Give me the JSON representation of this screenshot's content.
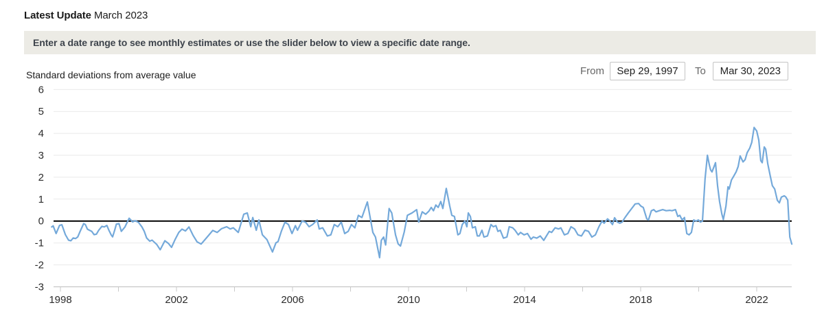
{
  "header": {
    "latest_update_label": "Latest Update",
    "latest_update_value": "March 2023"
  },
  "banner": {
    "text": "Enter a date range to see monthly estimates or use the slider below to view a specific date range."
  },
  "range": {
    "from_label": "From",
    "from_value": "Sep 29, 1997",
    "to_label": "To",
    "to_value": "Mar 30, 2023"
  },
  "colors": {
    "accent_line": "#74a9da",
    "banner_bg": "#ecebe5",
    "zero_line": "#000000",
    "gridline": "#e9e9e9",
    "axis_line": "#b9b9b9",
    "tick": "#c9c9c9"
  },
  "chart_data": {
    "type": "line",
    "title": "Standard deviations from average value",
    "xlabel": "",
    "ylabel": "Standard deviations from average value",
    "ylim": [
      -3,
      6
    ],
    "xlim": [
      1997.65,
      2023.3
    ],
    "grid": true,
    "legend_position": "none",
    "zero_line": true,
    "line_color": "#74a9da",
    "y_ticks": [
      6,
      5,
      4,
      3,
      2,
      1,
      0,
      -1,
      -2,
      -3
    ],
    "x_ticks": [
      1998,
      2000,
      2002,
      2004,
      2006,
      2008,
      2010,
      2012,
      2014,
      2016,
      2018,
      2020,
      2022
    ],
    "x_tick_labels": [
      1998,
      2002,
      2006,
      2010,
      2014,
      2018,
      2022
    ],
    "series": [
      {
        "name": "Standard deviations from average value",
        "points": [
          [
            1997.7,
            -0.27
          ],
          [
            1997.75,
            -0.22
          ],
          [
            1997.85,
            -0.57
          ],
          [
            1997.97,
            -0.2
          ],
          [
            1998.05,
            -0.17
          ],
          [
            1998.17,
            -0.62
          ],
          [
            1998.28,
            -0.87
          ],
          [
            1998.36,
            -0.9
          ],
          [
            1998.44,
            -0.77
          ],
          [
            1998.52,
            -0.8
          ],
          [
            1998.6,
            -0.72
          ],
          [
            1998.68,
            -0.47
          ],
          [
            1998.8,
            -0.12
          ],
          [
            1998.86,
            -0.16
          ],
          [
            1998.93,
            -0.37
          ],
          [
            1999.0,
            -0.42
          ],
          [
            1999.08,
            -0.47
          ],
          [
            1999.16,
            -0.62
          ],
          [
            1999.24,
            -0.6
          ],
          [
            1999.32,
            -0.42
          ],
          [
            1999.43,
            -0.24
          ],
          [
            1999.51,
            -0.27
          ],
          [
            1999.6,
            -0.2
          ],
          [
            1999.67,
            -0.42
          ],
          [
            1999.75,
            -0.63
          ],
          [
            1999.8,
            -0.72
          ],
          [
            1999.87,
            -0.42
          ],
          [
            1999.93,
            -0.14
          ],
          [
            2000.02,
            -0.12
          ],
          [
            2000.1,
            -0.47
          ],
          [
            2000.22,
            -0.28
          ],
          [
            2000.37,
            0.13
          ],
          [
            2000.49,
            -0.04
          ],
          [
            2000.57,
            0.02
          ],
          [
            2000.69,
            -0.06
          ],
          [
            2000.81,
            -0.27
          ],
          [
            2000.89,
            -0.47
          ],
          [
            2000.97,
            -0.77
          ],
          [
            2001.08,
            -0.92
          ],
          [
            2001.16,
            -0.87
          ],
          [
            2001.32,
            -1.07
          ],
          [
            2001.44,
            -1.31
          ],
          [
            2001.6,
            -0.9
          ],
          [
            2001.72,
            -1.02
          ],
          [
            2001.83,
            -1.2
          ],
          [
            2001.95,
            -0.85
          ],
          [
            2002.08,
            -0.52
          ],
          [
            2002.19,
            -0.37
          ],
          [
            2002.31,
            -0.45
          ],
          [
            2002.43,
            -0.27
          ],
          [
            2002.57,
            -0.65
          ],
          [
            2002.71,
            -0.95
          ],
          [
            2002.85,
            -1.05
          ],
          [
            2002.95,
            -0.9
          ],
          [
            2003.09,
            -0.68
          ],
          [
            2003.25,
            -0.43
          ],
          [
            2003.4,
            -0.52
          ],
          [
            2003.55,
            -0.35
          ],
          [
            2003.73,
            -0.26
          ],
          [
            2003.85,
            -0.36
          ],
          [
            2003.96,
            -0.31
          ],
          [
            2004.13,
            -0.52
          ],
          [
            2004.32,
            0.31
          ],
          [
            2004.44,
            0.37
          ],
          [
            2004.56,
            -0.26
          ],
          [
            2004.63,
            0.16
          ],
          [
            2004.75,
            -0.42
          ],
          [
            2004.84,
            0.05
          ],
          [
            2004.96,
            -0.63
          ],
          [
            2005.12,
            -0.85
          ],
          [
            2005.31,
            -1.41
          ],
          [
            2005.43,
            -0.99
          ],
          [
            2005.5,
            -0.94
          ],
          [
            2005.62,
            -0.45
          ],
          [
            2005.74,
            -0.05
          ],
          [
            2005.86,
            -0.16
          ],
          [
            2005.98,
            -0.57
          ],
          [
            2006.1,
            -0.21
          ],
          [
            2006.17,
            -0.42
          ],
          [
            2006.33,
            0.0
          ],
          [
            2006.45,
            -0.05
          ],
          [
            2006.57,
            -0.26
          ],
          [
            2006.7,
            -0.15
          ],
          [
            2006.85,
            0.05
          ],
          [
            2006.92,
            -0.36
          ],
          [
            2007.04,
            -0.31
          ],
          [
            2007.2,
            -0.68
          ],
          [
            2007.32,
            -0.63
          ],
          [
            2007.44,
            -0.16
          ],
          [
            2007.56,
            -0.26
          ],
          [
            2007.68,
            -0.05
          ],
          [
            2007.8,
            -0.57
          ],
          [
            2007.92,
            -0.47
          ],
          [
            2008.03,
            -0.16
          ],
          [
            2008.15,
            -0.31
          ],
          [
            2008.27,
            0.26
          ],
          [
            2008.39,
            0.16
          ],
          [
            2008.58,
            0.87
          ],
          [
            2008.77,
            -0.52
          ],
          [
            2008.86,
            -0.73
          ],
          [
            2009.0,
            -1.67
          ],
          [
            2009.06,
            -0.88
          ],
          [
            2009.14,
            -0.73
          ],
          [
            2009.21,
            -1.09
          ],
          [
            2009.33,
            0.57
          ],
          [
            2009.42,
            0.37
          ],
          [
            2009.55,
            -0.63
          ],
          [
            2009.64,
            -1.04
          ],
          [
            2009.72,
            -1.14
          ],
          [
            2009.85,
            -0.5
          ],
          [
            2009.96,
            0.26
          ],
          [
            2010.12,
            0.37
          ],
          [
            2010.28,
            0.52
          ],
          [
            2010.35,
            -0.05
          ],
          [
            2010.47,
            0.42
          ],
          [
            2010.59,
            0.31
          ],
          [
            2010.7,
            0.45
          ],
          [
            2010.78,
            0.62
          ],
          [
            2010.86,
            0.47
          ],
          [
            2010.94,
            0.73
          ],
          [
            2011.02,
            0.62
          ],
          [
            2011.11,
            0.89
          ],
          [
            2011.18,
            0.57
          ],
          [
            2011.3,
            1.49
          ],
          [
            2011.42,
            0.68
          ],
          [
            2011.49,
            0.26
          ],
          [
            2011.58,
            0.21
          ],
          [
            2011.7,
            -0.63
          ],
          [
            2011.77,
            -0.57
          ],
          [
            2011.85,
            -0.16
          ],
          [
            2011.94,
            0.0
          ],
          [
            2012.01,
            -0.26
          ],
          [
            2012.06,
            0.37
          ],
          [
            2012.13,
            0.21
          ],
          [
            2012.2,
            -0.31
          ],
          [
            2012.3,
            -0.26
          ],
          [
            2012.37,
            -0.68
          ],
          [
            2012.44,
            -0.68
          ],
          [
            2012.53,
            -0.42
          ],
          [
            2012.6,
            -0.73
          ],
          [
            2012.72,
            -0.68
          ],
          [
            2012.84,
            -0.16
          ],
          [
            2012.92,
            -0.26
          ],
          [
            2013.01,
            -0.21
          ],
          [
            2013.08,
            -0.47
          ],
          [
            2013.16,
            -0.42
          ],
          [
            2013.27,
            -0.78
          ],
          [
            2013.39,
            -0.73
          ],
          [
            2013.47,
            -0.26
          ],
          [
            2013.59,
            -0.31
          ],
          [
            2013.67,
            -0.42
          ],
          [
            2013.78,
            -0.63
          ],
          [
            2013.86,
            -0.52
          ],
          [
            2013.98,
            -0.63
          ],
          [
            2014.1,
            -0.57
          ],
          [
            2014.22,
            -0.83
          ],
          [
            2014.3,
            -0.73
          ],
          [
            2014.42,
            -0.78
          ],
          [
            2014.54,
            -0.68
          ],
          [
            2014.66,
            -0.88
          ],
          [
            2014.73,
            -0.73
          ],
          [
            2014.85,
            -0.47
          ],
          [
            2014.93,
            -0.52
          ],
          [
            2015.05,
            -0.31
          ],
          [
            2015.17,
            -0.36
          ],
          [
            2015.25,
            -0.31
          ],
          [
            2015.37,
            -0.63
          ],
          [
            2015.49,
            -0.57
          ],
          [
            2015.6,
            -0.26
          ],
          [
            2015.72,
            -0.36
          ],
          [
            2015.84,
            -0.63
          ],
          [
            2015.96,
            -0.68
          ],
          [
            2016.08,
            -0.42
          ],
          [
            2016.2,
            -0.47
          ],
          [
            2016.32,
            -0.73
          ],
          [
            2016.44,
            -0.63
          ],
          [
            2016.56,
            -0.26
          ],
          [
            2016.67,
            0.0
          ],
          [
            2016.74,
            -0.1
          ],
          [
            2016.86,
            0.1
          ],
          [
            2016.94,
            0.0
          ],
          [
            2017.03,
            -0.16
          ],
          [
            2017.1,
            0.15
          ],
          [
            2017.2,
            -0.05
          ],
          [
            2017.28,
            -0.1
          ],
          [
            2017.36,
            -0.05
          ],
          [
            2017.46,
            0.16
          ],
          [
            2017.57,
            0.36
          ],
          [
            2017.69,
            0.57
          ],
          [
            2017.81,
            0.78
          ],
          [
            2017.93,
            0.8
          ],
          [
            2018.01,
            0.68
          ],
          [
            2018.09,
            0.62
          ],
          [
            2018.21,
            0.1
          ],
          [
            2018.27,
            0.05
          ],
          [
            2018.37,
            0.47
          ],
          [
            2018.45,
            0.52
          ],
          [
            2018.53,
            0.42
          ],
          [
            2018.64,
            0.47
          ],
          [
            2018.76,
            0.52
          ],
          [
            2018.88,
            0.47
          ],
          [
            2019.0,
            0.49
          ],
          [
            2019.08,
            0.47
          ],
          [
            2019.2,
            0.52
          ],
          [
            2019.28,
            0.21
          ],
          [
            2019.35,
            0.26
          ],
          [
            2019.43,
            0.05
          ],
          [
            2019.51,
            0.16
          ],
          [
            2019.59,
            -0.57
          ],
          [
            2019.67,
            -0.63
          ],
          [
            2019.75,
            -0.52
          ],
          [
            2019.83,
            0.05
          ],
          [
            2019.91,
            0.0
          ],
          [
            2019.99,
            0.05
          ],
          [
            2020.06,
            -0.05
          ],
          [
            2020.13,
            0.0
          ],
          [
            2020.22,
            1.93
          ],
          [
            2020.3,
            3.0
          ],
          [
            2020.37,
            2.55
          ],
          [
            2020.41,
            2.34
          ],
          [
            2020.46,
            2.24
          ],
          [
            2020.58,
            2.66
          ],
          [
            2020.65,
            1.61
          ],
          [
            2020.72,
            0.89
          ],
          [
            2020.8,
            0.31
          ],
          [
            2020.85,
            0.07
          ],
          [
            2020.94,
            0.68
          ],
          [
            2021.01,
            1.56
          ],
          [
            2021.05,
            1.46
          ],
          [
            2021.13,
            1.87
          ],
          [
            2021.2,
            2.03
          ],
          [
            2021.29,
            2.24
          ],
          [
            2021.36,
            2.49
          ],
          [
            2021.43,
            2.97
          ],
          [
            2021.53,
            2.7
          ],
          [
            2021.6,
            2.8
          ],
          [
            2021.67,
            3.12
          ],
          [
            2021.76,
            3.33
          ],
          [
            2021.83,
            3.59
          ],
          [
            2021.91,
            4.27
          ],
          [
            2022.0,
            4.11
          ],
          [
            2022.07,
            3.7
          ],
          [
            2022.14,
            2.76
          ],
          [
            2022.19,
            2.66
          ],
          [
            2022.26,
            3.38
          ],
          [
            2022.31,
            3.28
          ],
          [
            2022.38,
            2.61
          ],
          [
            2022.47,
            2.03
          ],
          [
            2022.54,
            1.61
          ],
          [
            2022.62,
            1.46
          ],
          [
            2022.71,
            0.95
          ],
          [
            2022.78,
            0.83
          ],
          [
            2022.85,
            1.09
          ],
          [
            2022.95,
            1.15
          ],
          [
            2023.0,
            1.1
          ],
          [
            2023.07,
            0.95
          ],
          [
            2023.14,
            -0.73
          ],
          [
            2023.21,
            -1.05
          ]
        ]
      }
    ]
  }
}
